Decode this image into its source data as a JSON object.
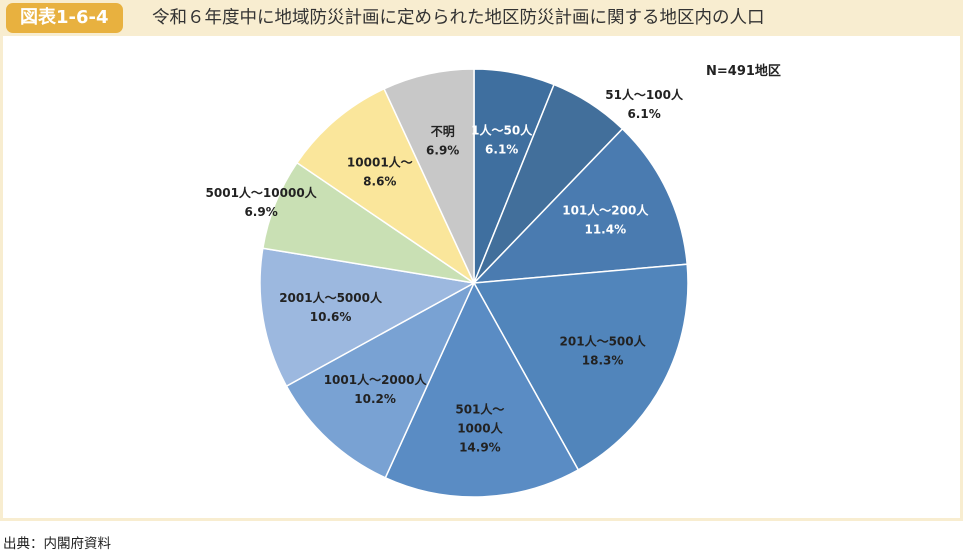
{
  "header": {
    "badge": "図表1-6-4",
    "title": "令和６年度中に地域防災計画に定められた地区防災計画に関する地区内の人口"
  },
  "source": "出典：内閣府資料",
  "colors": {
    "header_band": "#f8edd0",
    "badge": "#e8b13f"
  },
  "chart_data": {
    "type": "pie",
    "note": "N=491地区",
    "start_angle_deg": 0,
    "direction": "clockwise",
    "legend": "none",
    "slices": [
      {
        "name": "1人～50人",
        "value": 6.1,
        "label_lines": [
          "1人～50人",
          "6.1%"
        ],
        "color": "#3f6f9f",
        "text_color": "#ffffff"
      },
      {
        "name": "51人～100人",
        "value": 6.1,
        "label_lines": [
          "51人～100人",
          "6.1%"
        ],
        "color": "#426f9b",
        "text_color": "#222222",
        "label_outside": true
      },
      {
        "name": "101人～200人",
        "value": 11.4,
        "label_lines": [
          "101人～200人",
          "11.4%"
        ],
        "color": "#4a7bb0",
        "text_color": "#ffffff"
      },
      {
        "name": "201人～500人",
        "value": 18.3,
        "label_lines": [
          "201人～500人",
          "18.3%"
        ],
        "color": "#5185bb",
        "text_color": "#222222"
      },
      {
        "name": "501人～1000人",
        "value": 14.9,
        "label_lines": [
          "501人～",
          "1000人",
          "14.9%"
        ],
        "color": "#5a8cc4",
        "text_color": "#222222"
      },
      {
        "name": "1001人～2000人",
        "value": 10.2,
        "label_lines": [
          "1001人～2000人",
          "10.2%"
        ],
        "color": "#79a2d3",
        "text_color": "#222222"
      },
      {
        "name": "2001人～5000人",
        "value": 10.6,
        "label_lines": [
          "2001人～5000人",
          "10.6%"
        ],
        "color": "#9cb8df",
        "text_color": "#222222"
      },
      {
        "name": "5001人～10000人",
        "value": 6.9,
        "label_lines": [
          "5001人～10000人",
          "6.9%"
        ],
        "color": "#c9e0b4",
        "text_color": "#222222",
        "label_outside": true
      },
      {
        "name": "10001人～",
        "value": 8.6,
        "label_lines": [
          "10001人～",
          "8.6%"
        ],
        "color": "#fae69b",
        "text_color": "#222222"
      },
      {
        "name": "不明",
        "value": 6.9,
        "label_lines": [
          "不明",
          "6.9%"
        ],
        "color": "#c8c8c8",
        "text_color": "#222222"
      }
    ]
  }
}
